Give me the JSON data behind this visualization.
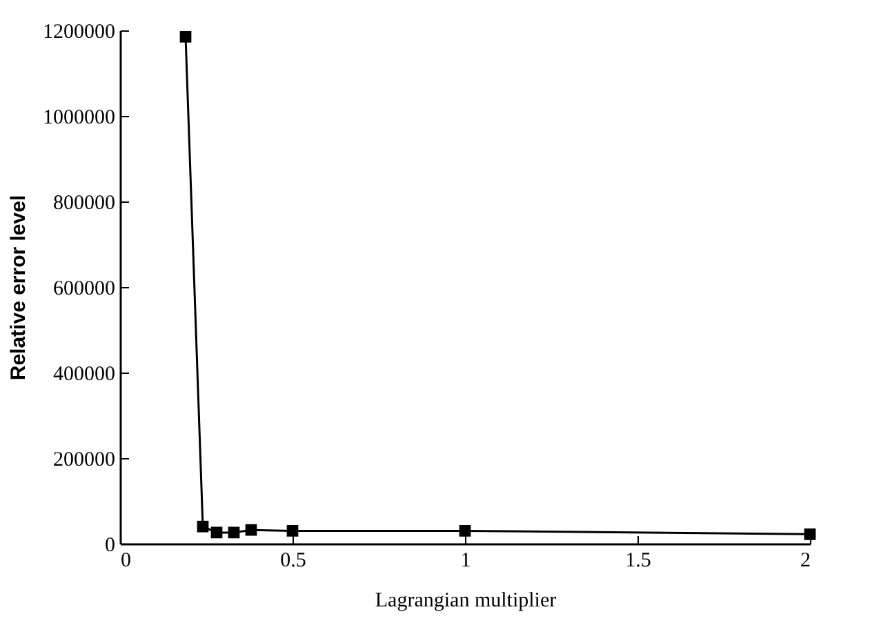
{
  "chart_data": {
    "type": "line",
    "xlabel": "Lagrangian multiplier",
    "ylabel": "Relative error level",
    "x": [
      0.19,
      0.24,
      0.28,
      0.33,
      0.38,
      0.5,
      1,
      2
    ],
    "series": [
      {
        "color": "#000000",
        "values": [
          1185000,
          40000,
          26000,
          26000,
          32000,
          30000,
          30000,
          22000
        ]
      }
    ],
    "xlim": [
      0,
      2
    ],
    "xticks": [
      0,
      0.5,
      1,
      1.5,
      2
    ],
    "ylim": [
      0,
      1200000
    ],
    "yticks": [
      0,
      200000,
      400000,
      600000,
      800000,
      1000000,
      1200000
    ],
    "marker": "square",
    "line_style": "solid",
    "grid": false,
    "legend": false
  }
}
